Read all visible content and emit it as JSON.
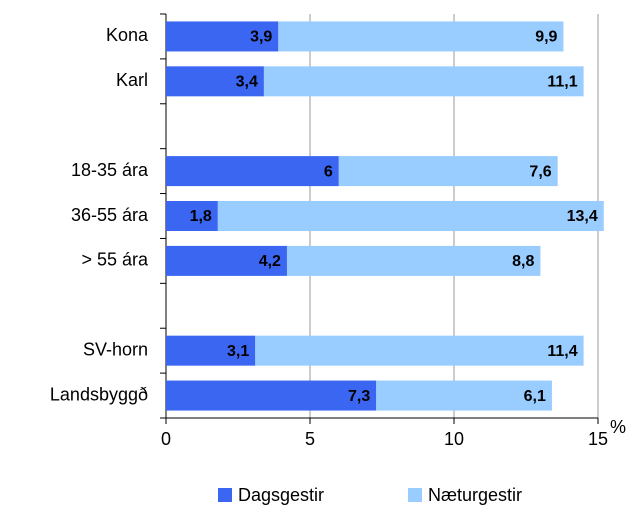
{
  "chart_data": {
    "type": "stacked_barh",
    "categories": [
      "Kona",
      "Karl",
      null,
      "18-35 ára",
      "36-55 ára",
      "> 55 ára",
      null,
      "SV-horn",
      "Landsbyggð"
    ],
    "series": [
      {
        "name": "Dagsgestir",
        "color": "#3a66f2",
        "values": [
          3.9,
          3.4,
          null,
          6,
          1.8,
          4.2,
          null,
          3.1,
          7.3
        ],
        "value_labels": [
          "3,9",
          "3,4",
          null,
          "6",
          "1,8",
          "4,2",
          null,
          "3,1",
          "7,3"
        ]
      },
      {
        "name": "Næturgestir",
        "color": "#99ccff",
        "values": [
          9.9,
          11.1,
          null,
          7.6,
          13.4,
          8.8,
          null,
          11.4,
          6.1
        ],
        "value_labels": [
          "9,9",
          "11,1",
          null,
          "7,6",
          "13,4",
          "8,8",
          null,
          "11,4",
          "6,1"
        ]
      }
    ],
    "x_label": "%",
    "xlim": [
      0,
      15
    ],
    "xticks": [
      0,
      5,
      10,
      15
    ],
    "grid": true,
    "legend": "bottom"
  }
}
